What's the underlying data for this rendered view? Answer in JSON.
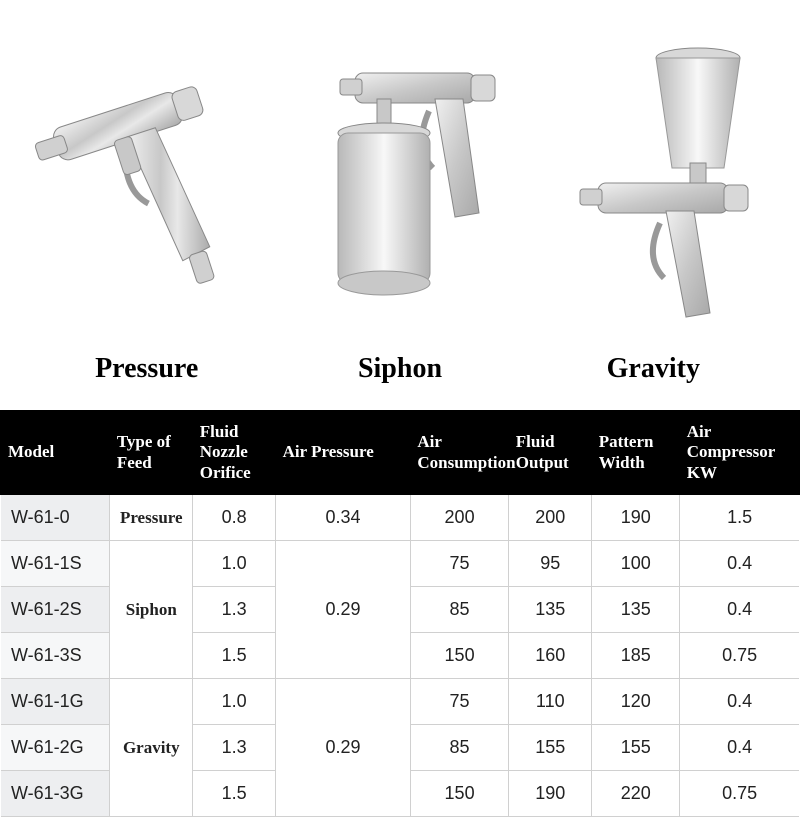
{
  "products": [
    {
      "label": "Pressure"
    },
    {
      "label": "Siphon"
    },
    {
      "label": "Gravity"
    }
  ],
  "table": {
    "columns": [
      "Model",
      "Type of Feed",
      "Fluid Nozzle Orifice",
      "Air Pressure",
      "Air Consumption",
      "Fluid Output",
      "Pattern Width",
      "Air Compressor KW"
    ],
    "feed_groups": [
      {
        "label": "Pressure",
        "rowspan": 1
      },
      {
        "label": "Siphon",
        "rowspan": 3
      },
      {
        "label": "Gravity",
        "rowspan": 3
      }
    ],
    "pressure_groups": [
      {
        "value": "0.34",
        "rowspan": 1
      },
      {
        "value": "0.29",
        "rowspan": 3
      },
      {
        "value": "0.29",
        "rowspan": 3
      }
    ],
    "rows": [
      {
        "model": "W-61-0",
        "nozzle": "0.8",
        "cons": "200",
        "fluid": "200",
        "pattern": "190",
        "comp": "1.5",
        "feed_idx": 0,
        "press_idx": 0
      },
      {
        "model": "W-61-1S",
        "nozzle": "1.0",
        "cons": "75",
        "fluid": "95",
        "pattern": "100",
        "comp": "0.4",
        "feed_idx": 1,
        "press_idx": 1
      },
      {
        "model": "W-61-2S",
        "nozzle": "1.3",
        "cons": "85",
        "fluid": "135",
        "pattern": "135",
        "comp": "0.4"
      },
      {
        "model": "W-61-3S",
        "nozzle": "1.5",
        "cons": "150",
        "fluid": "160",
        "pattern": "185",
        "comp": "0.75"
      },
      {
        "model": "W-61-1G",
        "nozzle": "1.0",
        "cons": "75",
        "fluid": "110",
        "pattern": "120",
        "comp": "0.4",
        "feed_idx": 2,
        "press_idx": 2
      },
      {
        "model": "W-61-2G",
        "nozzle": "1.3",
        "cons": "85",
        "fluid": "155",
        "pattern": "155",
        "comp": "0.4"
      },
      {
        "model": "W-61-3G",
        "nozzle": "1.5",
        "cons": "150",
        "fluid": "190",
        "pattern": "220",
        "comp": "0.75"
      }
    ]
  },
  "colors": {
    "header_bg": "#000000",
    "header_fg": "#ffffff",
    "model_bg_a": "#edeef0",
    "model_bg_b": "#f6f7f8",
    "cell_bg": "#ffffff",
    "border": "#d0d0d0",
    "text": "#222222"
  }
}
